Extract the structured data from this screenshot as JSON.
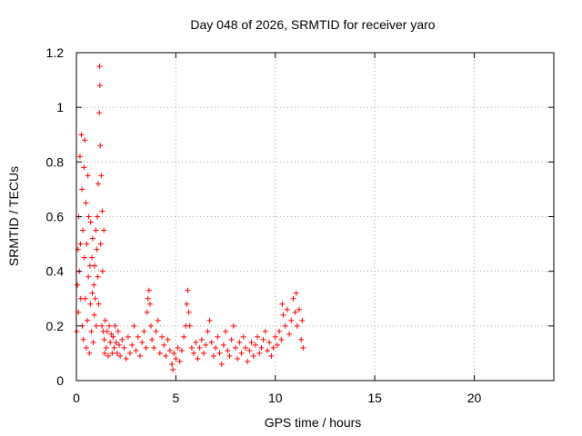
{
  "chart_data": {
    "type": "scatter",
    "title": "Day 048 of 2026, SRMTID for receiver yaro",
    "xlabel": "GPS time / hours",
    "ylabel": "SRMTID / TECUs",
    "xlim": [
      0,
      24
    ],
    "ylim": [
      0,
      1.2
    ],
    "xticks": [
      0,
      5,
      10,
      15,
      20
    ],
    "xtick_labels": [
      "0",
      "5",
      "10",
      "15",
      "20"
    ],
    "yticks": [
      0,
      0.2,
      0.4,
      0.6,
      0.8,
      1.0,
      1.2
    ],
    "ytick_labels": [
      "0",
      "0.2",
      "0.4",
      "0.6",
      "0.8",
      "1",
      "1.2"
    ],
    "grid": true,
    "marker": "+",
    "color": "#ff0000",
    "series": [
      {
        "name": "SRMTID",
        "points": [
          [
            0.02,
            0.18
          ],
          [
            0.05,
            0.35
          ],
          [
            0.08,
            0.48
          ],
          [
            0.1,
            0.25
          ],
          [
            0.12,
            0.6
          ],
          [
            0.15,
            0.4
          ],
          [
            0.18,
            0.82
          ],
          [
            0.2,
            0.5
          ],
          [
            0.22,
            0.3
          ],
          [
            0.25,
            0.9
          ],
          [
            0.28,
            0.7
          ],
          [
            0.3,
            0.2
          ],
          [
            0.32,
            0.55
          ],
          [
            0.35,
            0.15
          ],
          [
            0.38,
            0.78
          ],
          [
            0.4,
            0.45
          ],
          [
            0.42,
            0.88
          ],
          [
            0.45,
            0.3
          ],
          [
            0.48,
            0.65
          ],
          [
            0.5,
            0.12
          ],
          [
            0.52,
            0.5
          ],
          [
            0.55,
            0.22
          ],
          [
            0.58,
            0.75
          ],
          [
            0.6,
            0.38
          ],
          [
            0.62,
            0.6
          ],
          [
            0.65,
            0.1
          ],
          [
            0.68,
            0.42
          ],
          [
            0.7,
            0.28
          ],
          [
            0.72,
            0.58
          ],
          [
            0.75,
            0.18
          ],
          [
            0.78,
            0.45
          ],
          [
            0.8,
            0.32
          ],
          [
            0.82,
            0.52
          ],
          [
            0.85,
            0.14
          ],
          [
            0.88,
            0.35
          ],
          [
            0.9,
            0.24
          ],
          [
            0.92,
            0.42
          ],
          [
            0.95,
            0.3
          ],
          [
            0.98,
            0.55
          ],
          [
            1.0,
            0.2
          ],
          [
            1.02,
            0.48
          ],
          [
            1.05,
            0.6
          ],
          [
            1.08,
            0.38
          ],
          [
            1.1,
            0.72
          ],
          [
            1.12,
            0.28
          ],
          [
            1.15,
            0.98
          ],
          [
            1.17,
            1.15
          ],
          [
            1.18,
            1.08
          ],
          [
            1.2,
            0.86
          ],
          [
            1.22,
            0.5
          ],
          [
            1.25,
            0.75
          ],
          [
            1.28,
            0.2
          ],
          [
            1.3,
            0.62
          ],
          [
            1.32,
            0.4
          ],
          [
            1.35,
            0.18
          ],
          [
            1.38,
            0.55
          ],
          [
            1.4,
            0.15
          ],
          [
            1.42,
            0.1
          ],
          [
            1.45,
            0.22
          ],
          [
            1.5,
            0.12
          ],
          [
            1.55,
            0.18
          ],
          [
            1.6,
            0.09
          ],
          [
            1.65,
            0.2
          ],
          [
            1.7,
            0.14
          ],
          [
            1.75,
            0.17
          ],
          [
            1.8,
            0.1
          ],
          [
            1.85,
            0.16
          ],
          [
            1.9,
            0.12
          ],
          [
            1.95,
            0.2
          ],
          [
            2.0,
            0.14
          ],
          [
            2.05,
            0.1
          ],
          [
            2.1,
            0.18
          ],
          [
            2.15,
            0.13
          ],
          [
            2.2,
            0.09
          ],
          [
            2.3,
            0.15
          ],
          [
            2.4,
            0.12
          ],
          [
            2.5,
            0.08
          ],
          [
            2.6,
            0.16
          ],
          [
            2.7,
            0.1
          ],
          [
            2.8,
            0.13
          ],
          [
            2.9,
            0.2
          ],
          [
            3.0,
            0.11
          ],
          [
            3.1,
            0.16
          ],
          [
            3.2,
            0.09
          ],
          [
            3.3,
            0.14
          ],
          [
            3.4,
            0.18
          ],
          [
            3.5,
            0.12
          ],
          [
            3.55,
            0.25
          ],
          [
            3.6,
            0.3
          ],
          [
            3.65,
            0.33
          ],
          [
            3.7,
            0.28
          ],
          [
            3.75,
            0.2
          ],
          [
            3.8,
            0.15
          ],
          [
            3.9,
            0.12
          ],
          [
            4.0,
            0.18
          ],
          [
            4.1,
            0.22
          ],
          [
            4.2,
            0.1
          ],
          [
            4.3,
            0.16
          ],
          [
            4.4,
            0.13
          ],
          [
            4.5,
            0.09
          ],
          [
            4.6,
            0.15
          ],
          [
            4.7,
            0.11
          ],
          [
            4.8,
            0.06
          ],
          [
            4.85,
            0.04
          ],
          [
            4.9,
            0.1
          ],
          [
            5.0,
            0.08
          ],
          [
            5.1,
            0.12
          ],
          [
            5.2,
            0.07
          ],
          [
            5.3,
            0.11
          ],
          [
            5.4,
            0.16
          ],
          [
            5.5,
            0.2
          ],
          [
            5.55,
            0.28
          ],
          [
            5.6,
            0.33
          ],
          [
            5.65,
            0.25
          ],
          [
            5.7,
            0.2
          ],
          [
            5.8,
            0.12
          ],
          [
            5.9,
            0.1
          ],
          [
            6.0,
            0.14
          ],
          [
            6.1,
            0.08
          ],
          [
            6.2,
            0.12
          ],
          [
            6.3,
            0.15
          ],
          [
            6.4,
            0.1
          ],
          [
            6.5,
            0.13
          ],
          [
            6.6,
            0.18
          ],
          [
            6.7,
            0.22
          ],
          [
            6.8,
            0.14
          ],
          [
            6.9,
            0.09
          ],
          [
            7.0,
            0.12
          ],
          [
            7.1,
            0.16
          ],
          [
            7.2,
            0.1
          ],
          [
            7.3,
            0.06
          ],
          [
            7.4,
            0.13
          ],
          [
            7.5,
            0.18
          ],
          [
            7.6,
            0.11
          ],
          [
            7.7,
            0.09
          ],
          [
            7.8,
            0.15
          ],
          [
            7.9,
            0.2
          ],
          [
            8.0,
            0.12
          ],
          [
            8.1,
            0.08
          ],
          [
            8.2,
            0.14
          ],
          [
            8.3,
            0.1
          ],
          [
            8.4,
            0.16
          ],
          [
            8.5,
            0.12
          ],
          [
            8.6,
            0.07
          ],
          [
            8.7,
            0.11
          ],
          [
            8.8,
            0.14
          ],
          [
            8.9,
            0.09
          ],
          [
            9.0,
            0.13
          ],
          [
            9.1,
            0.16
          ],
          [
            9.2,
            0.1
          ],
          [
            9.3,
            0.12
          ],
          [
            9.4,
            0.15
          ],
          [
            9.5,
            0.18
          ],
          [
            9.6,
            0.11
          ],
          [
            9.7,
            0.14
          ],
          [
            9.8,
            0.09
          ],
          [
            9.9,
            0.12
          ],
          [
            10.0,
            0.16
          ],
          [
            10.1,
            0.13
          ],
          [
            10.2,
            0.18
          ],
          [
            10.3,
            0.15
          ],
          [
            10.35,
            0.28
          ],
          [
            10.4,
            0.24
          ],
          [
            10.5,
            0.2
          ],
          [
            10.6,
            0.26
          ],
          [
            10.7,
            0.17
          ],
          [
            10.8,
            0.22
          ],
          [
            10.9,
            0.3
          ],
          [
            11.0,
            0.25
          ],
          [
            11.05,
            0.32
          ],
          [
            11.1,
            0.2
          ],
          [
            11.2,
            0.26
          ],
          [
            11.3,
            0.15
          ],
          [
            11.35,
            0.22
          ],
          [
            11.4,
            0.12
          ]
        ]
      }
    ]
  }
}
